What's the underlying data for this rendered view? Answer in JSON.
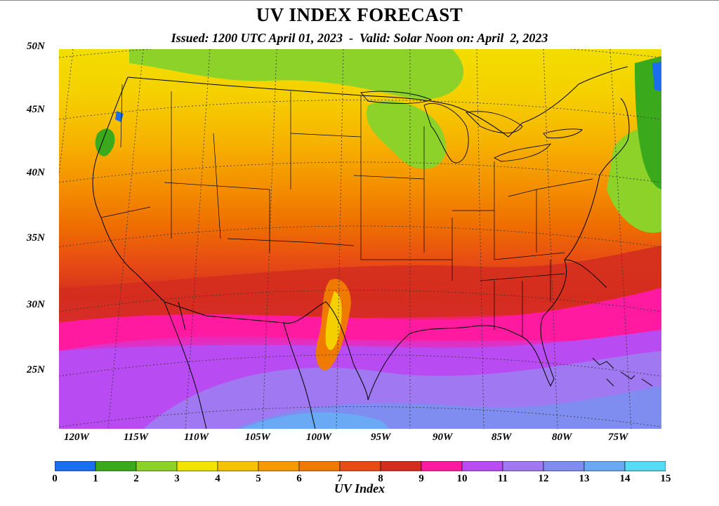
{
  "header": {
    "title": "UV INDEX FORECAST",
    "subtitle": "Issued: 1200 UTC April 01, 2023  -  Valid: Solar Noon on: April  2, 2023"
  },
  "axes": {
    "lat_labels": [
      "50N",
      "45N",
      "40N",
      "35N",
      "30N",
      "25N"
    ],
    "lon_labels": [
      "120W",
      "115W",
      "110W",
      "105W",
      "100W",
      "95W",
      "90W",
      "85W",
      "80W",
      "75W"
    ]
  },
  "colorbar": {
    "title": "UV Index",
    "ticks": [
      "0",
      "1",
      "2",
      "3",
      "4",
      "5",
      "6",
      "7",
      "8",
      "9",
      "10",
      "11",
      "12",
      "13",
      "14",
      "15"
    ],
    "colors": [
      "#1a6ef0",
      "#3aa91c",
      "#8cd229",
      "#f0e400",
      "#f7c300",
      "#f59a00",
      "#f07a00",
      "#e84c14",
      "#d42d1f",
      "#ff1aa0",
      "#b84bf2",
      "#9f78f2",
      "#7f8df0",
      "#6aaaf5",
      "#56dcf5"
    ]
  },
  "map": {
    "region": "Contiguous United States",
    "lat_range": [
      20,
      50
    ],
    "lon_range": [
      -125,
      -70
    ]
  }
}
